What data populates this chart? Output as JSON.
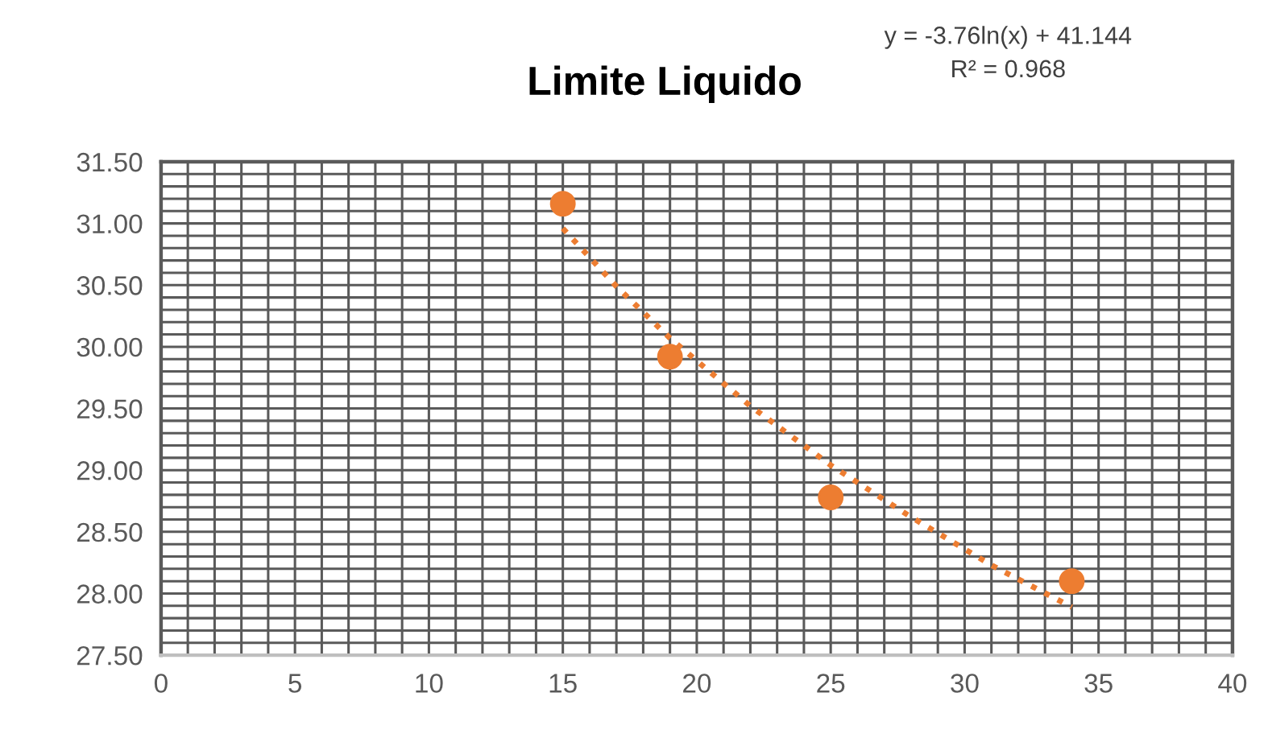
{
  "chart_data": {
    "type": "scatter",
    "title": "Limite Liquido",
    "annotations": [
      "y = -3.76ln(x) + 41.144",
      "R² = 0.968"
    ],
    "series": [
      {
        "color": "#ed7d31",
        "marker": "circle",
        "x": [
          15,
          19,
          25,
          34
        ],
        "values": [
          31.16,
          29.92,
          28.78,
          28.1
        ]
      },
      {
        "type": "line",
        "color": "#ed7d31",
        "marker": "none",
        "line_style": "dotted",
        "x": [
          15,
          17,
          19,
          22,
          25,
          28,
          31,
          34
        ],
        "values": [
          30.96,
          30.49,
          30.07,
          29.52,
          29.04,
          28.62,
          28.23,
          27.89
        ]
      }
    ],
    "xlim": [
      0,
      40
    ],
    "ylim": [
      27.5,
      31.5
    ],
    "xticks": [
      0,
      {
        "value": 1,
        "label": null
      },
      {
        "value": 2,
        "label": null
      },
      {
        "value": 3,
        "label": null
      },
      {
        "value": 4,
        "label": null
      },
      5,
      {
        "value": 6,
        "label": null
      },
      {
        "value": 7,
        "label": null
      },
      {
        "value": 8,
        "label": null
      },
      {
        "value": 9,
        "label": null
      },
      10,
      {
        "value": 11,
        "label": null
      },
      {
        "value": 12,
        "label": null
      },
      {
        "value": 13,
        "label": null
      },
      {
        "value": 14,
        "label": null
      },
      15,
      {
        "value": 16,
        "label": null
      },
      {
        "value": 17,
        "label": null
      },
      {
        "value": 18,
        "label": null
      },
      {
        "value": 19,
        "label": null
      },
      20,
      {
        "value": 21,
        "label": null
      },
      {
        "value": 22,
        "label": null
      },
      {
        "value": 23,
        "label": null
      },
      {
        "value": 24,
        "label": null
      },
      25,
      {
        "value": 26,
        "label": null
      },
      {
        "value": 27,
        "label": null
      },
      {
        "value": 28,
        "label": null
      },
      {
        "value": 29,
        "label": null
      },
      30,
      {
        "value": 31,
        "label": null
      },
      {
        "value": 32,
        "label": null
      },
      {
        "value": 33,
        "label": null
      },
      {
        "value": 34,
        "label": null
      },
      35,
      {
        "value": 36,
        "label": null
      },
      {
        "value": 37,
        "label": null
      },
      {
        "value": 38,
        "label": null
      },
      {
        "value": 39,
        "label": null
      },
      40
    ],
    "yticks": [
      {
        "value": 27.5,
        "label": "27.50"
      },
      {
        "value": 27.6,
        "label": null
      },
      {
        "value": 27.7,
        "label": null
      },
      {
        "value": 27.8,
        "label": null
      },
      {
        "value": 27.9,
        "label": null
      },
      {
        "value": 28.0,
        "label": "28.00"
      },
      {
        "value": 28.1,
        "label": null
      },
      {
        "value": 28.2,
        "label": null
      },
      {
        "value": 28.3,
        "label": null
      },
      {
        "value": 28.4,
        "label": null
      },
      {
        "value": 28.5,
        "label": "28.50"
      },
      {
        "value": 28.6,
        "label": null
      },
      {
        "value": 28.7,
        "label": null
      },
      {
        "value": 28.8,
        "label": null
      },
      {
        "value": 28.9,
        "label": null
      },
      {
        "value": 29.0,
        "label": "29.00"
      },
      {
        "value": 29.1,
        "label": null
      },
      {
        "value": 29.2,
        "label": null
      },
      {
        "value": 29.3,
        "label": null
      },
      {
        "value": 29.4,
        "label": null
      },
      {
        "value": 29.5,
        "label": "29.50"
      },
      {
        "value": 29.6,
        "label": null
      },
      {
        "value": 29.7,
        "label": null
      },
      {
        "value": 29.8,
        "label": null
      },
      {
        "value": 29.9,
        "label": null
      },
      {
        "value": 30.0,
        "label": "30.00"
      },
      {
        "value": 30.1,
        "label": null
      },
      {
        "value": 30.2,
        "label": null
      },
      {
        "value": 30.3,
        "label": null
      },
      {
        "value": 30.4,
        "label": null
      },
      {
        "value": 30.5,
        "label": "30.50"
      },
      {
        "value": 30.6,
        "label": null
      },
      {
        "value": 30.7,
        "label": null
      },
      {
        "value": 30.8,
        "label": null
      },
      {
        "value": 30.9,
        "label": null
      },
      {
        "value": 31.0,
        "label": "31.00"
      },
      {
        "value": 31.1,
        "label": null
      },
      {
        "value": 31.2,
        "label": null
      },
      {
        "value": 31.3,
        "label": null
      },
      {
        "value": 31.4,
        "label": null
      },
      {
        "value": 31.5,
        "label": "31.50"
      }
    ],
    "grid": true,
    "legend": false
  }
}
